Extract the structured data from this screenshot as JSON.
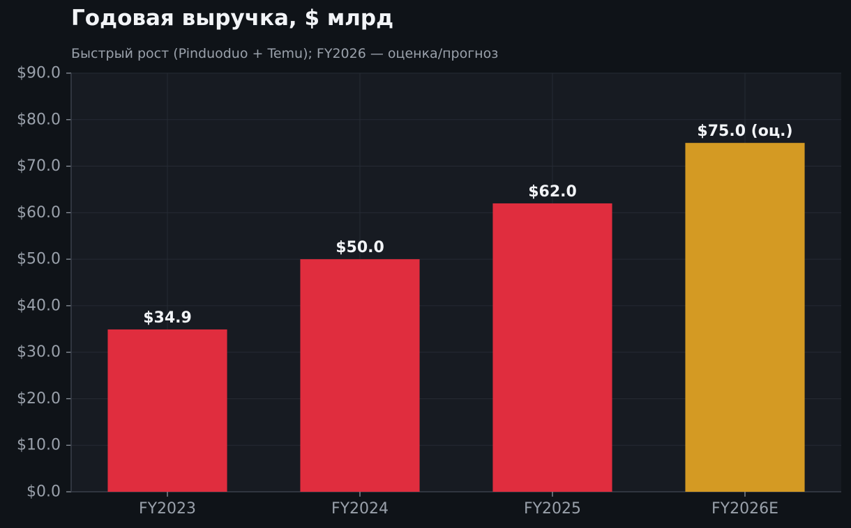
{
  "chart_data": {
    "type": "bar",
    "title": "Годовая выручка, $ млрд",
    "subtitle": "Быстрый рост (Pinduoduo + Temu); FY2026 — оценка/прогноз",
    "categories": [
      "FY2023",
      "FY2024",
      "FY2025",
      "FY2026E"
    ],
    "values": [
      34.9,
      50.0,
      62.0,
      75.0
    ],
    "data_labels": [
      "$34.9",
      "$50.0",
      "$62.0",
      "$75.0 (оц.)"
    ],
    "bar_colors": [
      "#e02d3e",
      "#e02d3e",
      "#e02d3e",
      "#d49a23"
    ],
    "xlabel": "",
    "ylabel": "",
    "ylim": [
      0,
      90
    ],
    "yticks": [
      0,
      10,
      20,
      30,
      40,
      50,
      60,
      70,
      80,
      90
    ],
    "ytick_labels": [
      "$0.0",
      "$10.0",
      "$20.0",
      "$30.0",
      "$40.0",
      "$50.0",
      "$60.0",
      "$70.0",
      "$80.0",
      "$90.0"
    ],
    "grid": true,
    "colors": {
      "background": "#0f1318",
      "plot_background": "#171b22",
      "grid": "#262b34",
      "axis": "#3a404a",
      "tick_text": "#9aa1ab",
      "label_text": "#f2f4f7"
    }
  }
}
